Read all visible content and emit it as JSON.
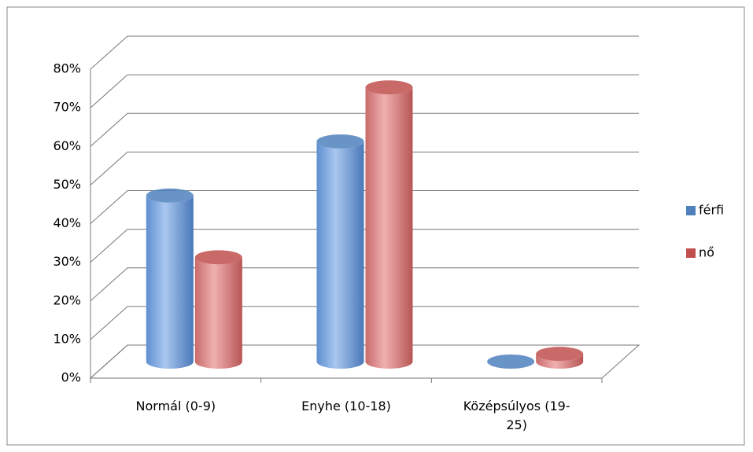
{
  "chart_data": {
    "type": "bar3d",
    "categories": [
      "Normál (0-9)",
      "Enyhe (10-18)",
      "Középsúlyos (19-25)"
    ],
    "series": [
      {
        "name": "férfi",
        "color": "#4f81bd",
        "values": [
          43,
          57,
          0
        ]
      },
      {
        "name": "nő",
        "color": "#c0504d",
        "values": [
          27,
          71,
          2
        ]
      }
    ],
    "ylim": [
      0,
      80
    ],
    "yticks": [
      {
        "value": 0,
        "label": "0%"
      },
      {
        "value": 10,
        "label": "10%"
      },
      {
        "value": 20,
        "label": "20%"
      },
      {
        "value": 30,
        "label": "30%"
      },
      {
        "value": 40,
        "label": "40%"
      },
      {
        "value": 50,
        "label": "50%"
      },
      {
        "value": 60,
        "label": "60%"
      },
      {
        "value": 70,
        "label": "70%"
      },
      {
        "value": 80,
        "label": "80%"
      }
    ],
    "grid": true,
    "legend": "right"
  }
}
